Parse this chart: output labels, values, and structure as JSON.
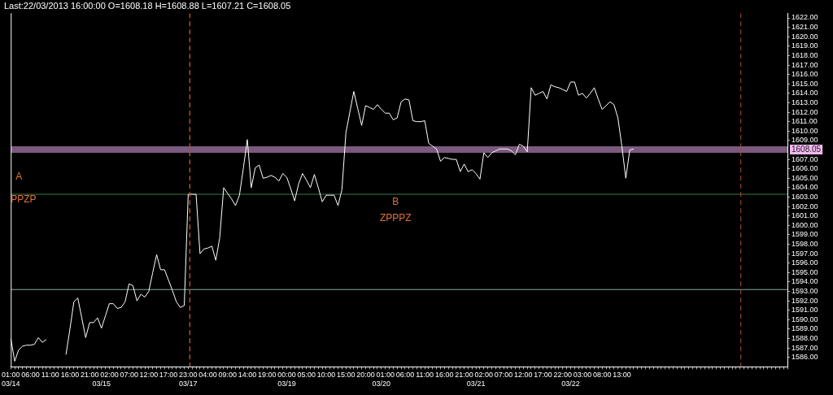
{
  "chart_data": {
    "type": "line",
    "title": "Last:22/03/2013 16:00:00 O=1608.18 H=1608.88 L=1607.21 C=1608.05",
    "categories": [
      "01:00\n03/14",
      null,
      null,
      null,
      null,
      "06:00",
      null,
      null,
      null,
      null,
      "11:00",
      null,
      null,
      null,
      null,
      "16:00",
      null,
      null,
      null,
      null,
      "21:00",
      null,
      null,
      "\n03/15",
      null,
      "02:00",
      null,
      null,
      null,
      null,
      "07:00",
      null,
      null,
      null,
      null,
      "12:00",
      null,
      null,
      null,
      null,
      "17:00",
      null,
      null,
      null,
      null,
      "23:00\n03/17",
      null,
      null,
      null,
      null,
      "04:00",
      null,
      null,
      null,
      null,
      "09:00",
      null,
      null,
      null,
      null,
      "14:00",
      null,
      null,
      null,
      null,
      "19:00",
      null,
      null,
      null,
      null,
      "00:00\n03/19",
      null,
      null,
      null,
      null,
      "05:00",
      null,
      null,
      null,
      null,
      "10:00",
      null,
      null,
      null,
      null,
      "15:00",
      null,
      null,
      null,
      null,
      "20:00",
      null,
      null,
      null,
      "\n03/20",
      "01:00",
      null,
      null,
      null,
      null,
      "06:00",
      null,
      null,
      null,
      null,
      "11:00",
      null,
      null,
      null,
      null,
      "16:00",
      null,
      null,
      null,
      null,
      "21:00",
      null,
      null,
      "\n03/21",
      null,
      "02:00",
      null,
      null,
      null,
      null,
      "07:00",
      null,
      null,
      null,
      null,
      "12:00",
      null,
      null,
      null,
      null,
      "17:00",
      null,
      null,
      null,
      null,
      "22:00",
      null,
      "\n03/22",
      null,
      null,
      "03:00",
      null,
      null,
      null,
      null,
      "08:00",
      null,
      null,
      null,
      null,
      "13:00",
      null,
      null,
      null,
      null,
      null,
      null,
      null,
      null,
      null,
      null,
      null,
      null,
      null,
      null,
      null,
      null,
      null,
      null,
      null,
      null,
      null,
      null,
      null,
      null,
      null,
      null,
      null,
      null,
      null,
      null,
      null,
      null,
      null,
      null,
      null,
      null,
      null,
      null,
      null,
      null,
      null,
      null
    ],
    "series": [
      {
        "color": "#ffffff",
        "values": [
          1588.0,
          1585.6,
          1586.8,
          1587.2,
          1587.3,
          1587.3,
          1587.4,
          1588.1,
          1587.6,
          1587.9,
          null,
          null,
          null,
          null,
          1586.3,
          1589.0,
          1591.9,
          1592.3,
          1590.2,
          1588.1,
          1589.7,
          1589.7,
          1590.2,
          1589.1,
          1590.4,
          1591.7,
          1591.7,
          1591.2,
          1591.3,
          1591.9,
          1593.8,
          1593.6,
          1592.0,
          1592.7,
          1592.4,
          1593.0,
          1595.0,
          1596.9,
          1595.3,
          1595.3,
          1594.2,
          1593.1,
          1591.9,
          1591.3,
          1591.5,
          1603.3,
          1603.3,
          1603.3,
          1597.0,
          1597.5,
          1597.6,
          1597.8,
          1596.3,
          1598.7,
          1604.0,
          1603.4,
          1602.8,
          1602.1,
          1603.2,
          1606.1,
          1609.1,
          1604.0,
          1606.1,
          1606.4,
          1605.0,
          1605.1,
          1605.3,
          1605.1,
          1604.7,
          1605.5,
          1605.1,
          1603.9,
          1602.6,
          1604.4,
          1605.5,
          1604.8,
          1604.0,
          1605.4,
          1604.0,
          1602.5,
          1603.2,
          1603.2,
          1603.2,
          1602.1,
          1603.8,
          1609.8,
          1612.0,
          1614.2,
          1612.4,
          1610.6,
          1612.7,
          1612.5,
          1612.3,
          1612.8,
          1612.3,
          1611.9,
          1611.9,
          1611.2,
          1611.4,
          1613.1,
          1613.4,
          1613.3,
          1611.1,
          1611.0,
          1611.0,
          1611.1,
          1608.7,
          1608.4,
          1608.1,
          1606.8,
          1607.2,
          1607.1,
          1607.0,
          1607.0,
          1605.7,
          1606.5,
          1605.7,
          1605.9,
          1605.5,
          1604.9,
          1607.7,
          1607.2,
          1607.7,
          1607.9,
          1608.1,
          1608.1,
          1608.1,
          1607.9,
          1607.5,
          1608.6,
          1608.4,
          1607.8,
          1614.6,
          1613.8,
          1614.0,
          1614.2,
          1613.4,
          1614.9,
          1614.7,
          1614.6,
          1614.4,
          1614.2,
          1615.2,
          1615.2,
          1613.8,
          1614.0,
          1613.5,
          1614.0,
          1614.6,
          1613.4,
          1612.3,
          1612.7,
          1613.1,
          1612.8,
          1611.4,
          1608.4,
          1605.0,
          1608.0,
          1608.1,
          null,
          null,
          null,
          null,
          null,
          null,
          null,
          null,
          null,
          null,
          null,
          null,
          null,
          null,
          null,
          null,
          null,
          null,
          null,
          null,
          null,
          null,
          null,
          null,
          null,
          null,
          null,
          null,
          null,
          null,
          null,
          null,
          null,
          null,
          null,
          null,
          null,
          null,
          null
        ]
      }
    ],
    "ylim": [
      1585,
      1622.5
    ],
    "yticks": [
      {
        "value": 1586,
        "label": "1586.00"
      },
      {
        "value": 1587,
        "label": "1587.00"
      },
      {
        "value": 1588,
        "label": "1588.00"
      },
      {
        "value": 1589,
        "label": "1589.00"
      },
      {
        "value": 1590,
        "label": "1590.00"
      },
      {
        "value": 1591,
        "label": "1591.00"
      },
      {
        "value": 1592,
        "label": "1592.00"
      },
      {
        "value": 1593,
        "label": "1593.00"
      },
      {
        "value": 1594,
        "label": "1594.00"
      },
      {
        "value": 1595,
        "label": "1595.00"
      },
      {
        "value": 1596,
        "label": "1596.00"
      },
      {
        "value": 1597,
        "label": "1597.00"
      },
      {
        "value": 1598,
        "label": "1598.00"
      },
      {
        "value": 1599,
        "label": "1599.00"
      },
      {
        "value": 1600,
        "label": "1600.00"
      },
      {
        "value": 1601,
        "label": "1601.00"
      },
      {
        "value": 1602,
        "label": "1602.00"
      },
      {
        "value": 1603,
        "label": "1603.00"
      },
      {
        "value": 1604,
        "label": "1604.00"
      },
      {
        "value": 1605,
        "label": "1605.00"
      },
      {
        "value": 1606,
        "label": "1606.00"
      },
      {
        "value": 1607,
        "label": "1607.00"
      },
      {
        "value": 1609,
        "label": "1609.00"
      },
      {
        "value": 1610,
        "label": "1610.00"
      },
      {
        "value": 1611,
        "label": "1611.00"
      },
      {
        "value": 1612,
        "label": "1612.00"
      },
      {
        "value": 1613,
        "label": "1613.00"
      },
      {
        "value": 1614,
        "label": "1614.00"
      },
      {
        "value": 1615,
        "label": "1615.00"
      },
      {
        "value": 1616,
        "label": "1616.00"
      },
      {
        "value": 1617,
        "label": "1617.00"
      },
      {
        "value": 1618,
        "label": "1618.00"
      },
      {
        "value": 1619,
        "label": "1619.00"
      },
      {
        "value": 1620,
        "label": "1620.00"
      },
      {
        "value": 1621,
        "label": "1621.00"
      },
      {
        "value": 1622,
        "label": "1622.00"
      }
    ],
    "ref_lines": [
      {
        "axis": "y",
        "value": 1608.05,
        "label": "1608.05",
        "color": "#7b5a7e"
      },
      {
        "axis": "y",
        "value": 1603.3,
        "color": "#3a7a46"
      },
      {
        "axis": "y",
        "value": 1593.2,
        "color": "#8aa8a4"
      },
      {
        "axis": "x",
        "value": "23:00\n03/17",
        "color": "#b0502a",
        "line_style": "dashed"
      }
    ],
    "annotations": [
      "A",
      "PPZP",
      "B",
      "ZPPPZ"
    ],
    "marker": "none",
    "line_style": "solid",
    "grid": false,
    "legend": false
  }
}
